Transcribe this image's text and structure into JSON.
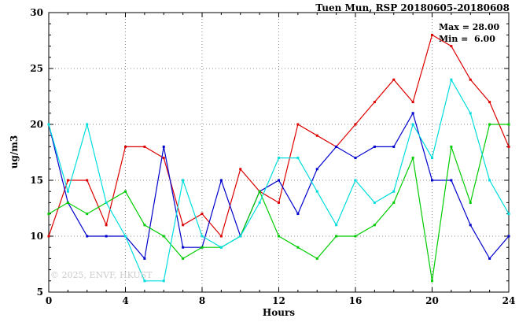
{
  "header": {
    "title": "Tuen Mun, RSP 20180605-20180608"
  },
  "annotations": {
    "max_label": "Max = 28.00",
    "min_label": "Min =  6.00"
  },
  "watermark": "© 2025, ENVF, HKUST",
  "chart_data": {
    "type": "line",
    "title": "Tuen Mun, RSP 20180605-20180608",
    "xlabel": "Hours",
    "ylabel": "ug/m3",
    "xlim": [
      0,
      24
    ],
    "ylim": [
      5,
      30
    ],
    "xticks": [
      0,
      4,
      8,
      12,
      16,
      20,
      24
    ],
    "yticks": [
      5,
      10,
      15,
      20,
      25,
      30
    ],
    "grid": "dotted",
    "legend": "none",
    "max": 28.0,
    "min": 6.0,
    "x": [
      0,
      1,
      2,
      3,
      4,
      5,
      6,
      7,
      8,
      9,
      10,
      11,
      12,
      13,
      14,
      15,
      16,
      17,
      18,
      19,
      20,
      21,
      22,
      23,
      24
    ],
    "series": [
      {
        "name": "series-red",
        "color": "#dd0000",
        "values": [
          10,
          15,
          15,
          11,
          18,
          18,
          17,
          11,
          12,
          10,
          16,
          14,
          13,
          20,
          19,
          18,
          20,
          22,
          24,
          22,
          28,
          27,
          24,
          22,
          18
        ]
      },
      {
        "name": "series-blue",
        "color": "#0000cc",
        "values": [
          20,
          13,
          10,
          10,
          10,
          8,
          18,
          9,
          9,
          15,
          10,
          14,
          15,
          12,
          16,
          18,
          17,
          18,
          18,
          21,
          15,
          15,
          11,
          8,
          10
        ]
      },
      {
        "name": "series-green",
        "color": "#00cc00",
        "values": [
          12,
          13,
          12,
          13,
          14,
          11,
          10,
          8,
          9,
          9,
          10,
          14,
          10,
          9,
          8,
          10,
          10,
          11,
          13,
          17,
          6,
          18,
          13,
          20,
          20
        ]
      },
      {
        "name": "series-cyan",
        "color": "#00dddd",
        "values": [
          20,
          14,
          20,
          13,
          10,
          6,
          6,
          15,
          10,
          9,
          10,
          13,
          17,
          17,
          14,
          11,
          15,
          13,
          14,
          20,
          17,
          24,
          21,
          15,
          12
        ]
      }
    ]
  }
}
